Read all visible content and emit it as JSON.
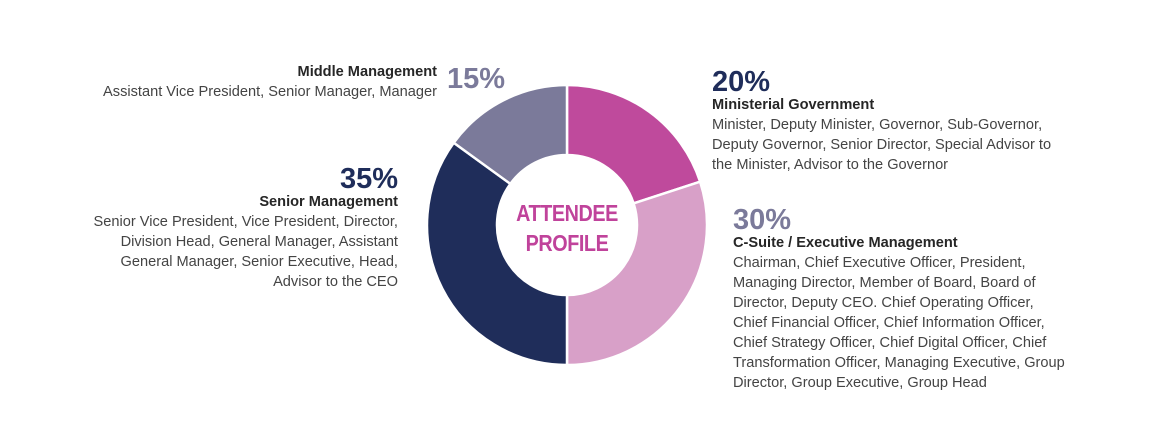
{
  "chart_data": {
    "type": "pie",
    "donut": true,
    "center_label": [
      "ATTENDEE",
      "PROFILE"
    ],
    "slices": [
      {
        "category": "Ministerial Government",
        "value": 20,
        "label": "20%",
        "color": "#bf4a9c",
        "description": [
          "Minister, Deputy Minister, Governor, Sub-Governor,",
          "Deputy Governor, Senior Director, Special Advisor to",
          "the Minister, Advisor to the Governor"
        ]
      },
      {
        "category": "C-Suite / Executive Management",
        "value": 30,
        "label": "30%",
        "color": "#d8a0c8",
        "description": [
          "Chairman, Chief Executive Officer, President,",
          "Managing Director, Member of Board, Board of",
          "Director, Deputy CEO. Chief Operating Officer,",
          "Chief Financial Officer, Chief Information Officer,",
          "Chief Strategy Officer, Chief Digital Officer, Chief",
          "Transformation Officer, Managing Executive, Group",
          "Director, Group Executive, Group Head"
        ]
      },
      {
        "category": "Senior Management",
        "value": 35,
        "label": "35%",
        "color": "#1f2d5a",
        "description": [
          "Senior Vice President, Vice President, Director,",
          "Division Head, General Manager, Assistant",
          "General Manager, Senior Executive, Head,",
          "Advisor to the CEO"
        ]
      },
      {
        "category": "Middle Management",
        "value": 15,
        "label": "15%",
        "color": "#7b7a9a",
        "description": [
          "Assistant Vice President, Senior Manager, Manager"
        ]
      }
    ]
  }
}
